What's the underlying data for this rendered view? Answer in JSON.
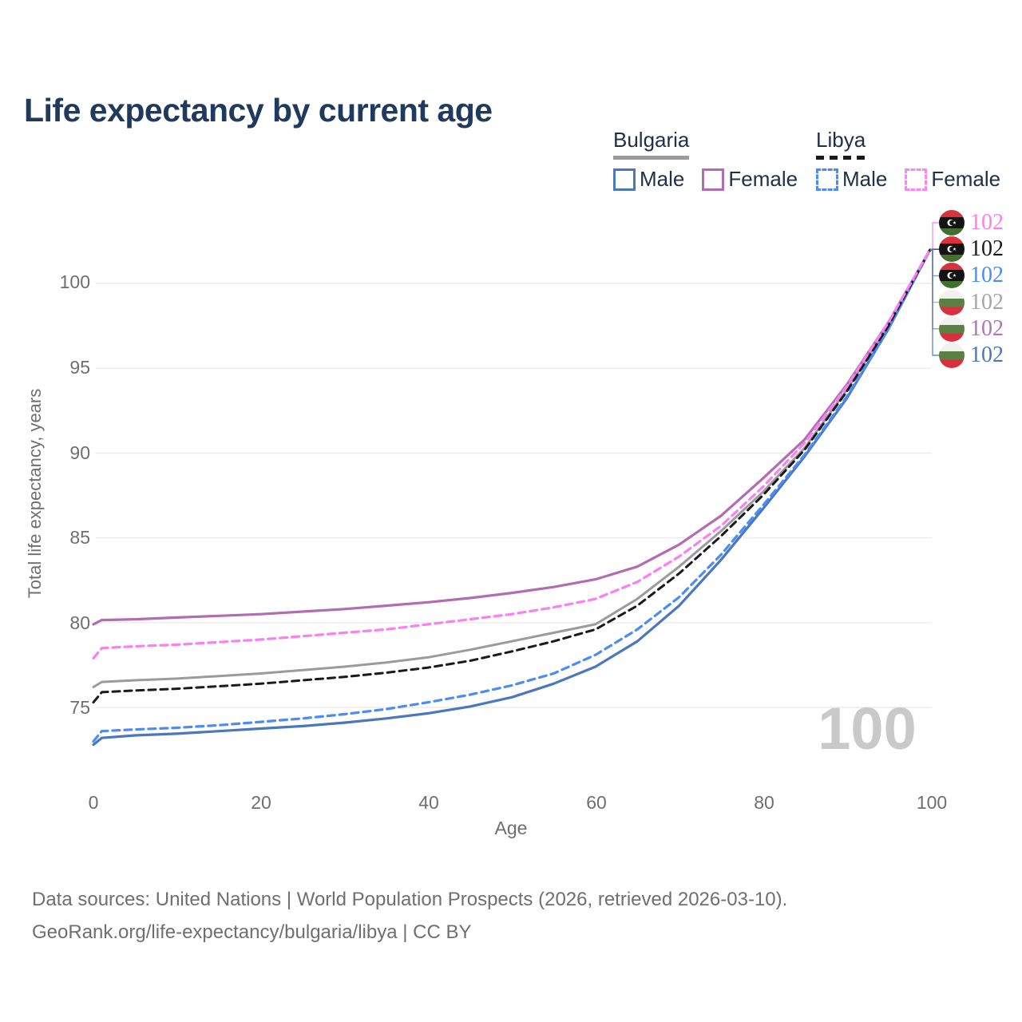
{
  "title": "Life expectancy by current age",
  "legend": {
    "groups": [
      {
        "label": "Bulgaria",
        "key_style": "solid",
        "key_color": "#9a9a9a",
        "items": [
          {
            "label": "Male",
            "style": "solid",
            "color": "#4a77bd"
          },
          {
            "label": "Female",
            "style": "solid",
            "color": "#b26cb2"
          }
        ]
      },
      {
        "label": "Libya",
        "key_style": "dashed",
        "key_color": "#1a1a1a",
        "items": [
          {
            "label": "Male",
            "style": "dashed",
            "color": "#4b8cf7"
          },
          {
            "label": "Female",
            "style": "dashed",
            "color": "#fc84f4"
          }
        ]
      }
    ]
  },
  "watermark_age": "100",
  "chart_data": {
    "type": "line",
    "title": "Life expectancy by current age",
    "xlabel": "Age",
    "ylabel": "Total life expectancy, years",
    "xticks": [
      0,
      20,
      40,
      60,
      80,
      100
    ],
    "yticks": [
      75,
      80,
      85,
      90,
      95,
      100
    ],
    "xlim": [
      0,
      100
    ],
    "ylim": [
      72.5,
      102.5
    ],
    "grid": true,
    "legend_position": "top-right",
    "x": [
      0,
      1,
      5,
      10,
      15,
      20,
      25,
      30,
      35,
      40,
      45,
      50,
      55,
      60,
      65,
      70,
      75,
      80,
      85,
      90,
      95,
      100
    ],
    "series": [
      {
        "name": "Bulgaria Total",
        "country": "Bulgaria",
        "sex": "Both",
        "style": "solid",
        "color": "#9b9b9b",
        "width": 3,
        "values": [
          76.2,
          76.5,
          76.6,
          76.7,
          76.85,
          77.0,
          77.2,
          77.4,
          77.65,
          77.95,
          78.4,
          78.9,
          79.4,
          79.9,
          81.4,
          83.3,
          85.4,
          87.7,
          90.3,
          93.7,
          97.5,
          102
        ]
      },
      {
        "name": "Bulgaria Female",
        "country": "Bulgaria",
        "sex": "Female",
        "style": "solid",
        "color": "#b26cb2",
        "width": 3.2,
        "values": [
          79.9,
          80.15,
          80.2,
          80.3,
          80.4,
          80.5,
          80.65,
          80.8,
          81.0,
          81.2,
          81.45,
          81.75,
          82.1,
          82.55,
          83.3,
          84.6,
          86.3,
          88.5,
          90.8,
          94.0,
          97.7,
          102
        ]
      },
      {
        "name": "Bulgaria Male",
        "country": "Bulgaria",
        "sex": "Male",
        "style": "solid",
        "color": "#4a77bd",
        "width": 3.2,
        "values": [
          72.8,
          73.2,
          73.35,
          73.45,
          73.6,
          73.75,
          73.9,
          74.1,
          74.35,
          74.65,
          75.05,
          75.6,
          76.4,
          77.4,
          78.9,
          81.0,
          83.7,
          86.7,
          89.8,
          93.2,
          97.3,
          102
        ]
      },
      {
        "name": "Libya Male",
        "country": "Libya",
        "sex": "Male",
        "style": "dashed",
        "color": "#4b8cf7",
        "width": 3.2,
        "values": [
          73.0,
          73.6,
          73.7,
          73.8,
          73.95,
          74.15,
          74.35,
          74.6,
          74.9,
          75.3,
          75.75,
          76.3,
          77.0,
          78.1,
          79.6,
          81.5,
          84.0,
          86.9,
          89.9,
          93.3,
          97.3,
          102
        ]
      },
      {
        "name": "Libya Total",
        "country": "Libya",
        "sex": "Both",
        "style": "dashed",
        "color": "#1a1a1a",
        "width": 3,
        "values": [
          75.3,
          75.9,
          76.0,
          76.1,
          76.25,
          76.4,
          76.6,
          76.8,
          77.05,
          77.35,
          77.75,
          78.3,
          78.9,
          79.6,
          81.0,
          82.9,
          85.1,
          87.5,
          90.2,
          93.6,
          97.5,
          102
        ]
      },
      {
        "name": "Libya Female",
        "country": "Libya",
        "sex": "Female",
        "style": "dashed",
        "color": "#fb7ff2",
        "width": 3.2,
        "values": [
          77.9,
          78.5,
          78.6,
          78.7,
          78.85,
          79.0,
          79.2,
          79.4,
          79.6,
          79.9,
          80.2,
          80.5,
          80.9,
          81.4,
          82.4,
          83.9,
          85.7,
          88.0,
          90.6,
          93.9,
          97.7,
          102
        ]
      }
    ],
    "end_labels": [
      {
        "country": "Libya",
        "series": "Libya Female",
        "value": "102",
        "color": "#fb7ff2"
      },
      {
        "country": "Libya",
        "series": "Libya Total",
        "value": "102",
        "color": "#1a1a1a"
      },
      {
        "country": "Libya",
        "series": "Libya Male",
        "value": "102",
        "color": "#4b8cf7"
      },
      {
        "country": "Bulgaria",
        "series": "Bulgaria Total",
        "value": "102",
        "color": "#a6a6a6"
      },
      {
        "country": "Bulgaria",
        "series": "Bulgaria Female",
        "value": "102",
        "color": "#b473b4"
      },
      {
        "country": "Bulgaria",
        "series": "Bulgaria Male",
        "value": "102",
        "color": "#4a77bd"
      }
    ]
  },
  "footer": {
    "line1": "Data sources: United Nations | World Population Prospects (2026, retrieved 2026-03-10).",
    "line2": "GeoRank.org/life-expectancy/bulgaria/libya | CC BY"
  }
}
